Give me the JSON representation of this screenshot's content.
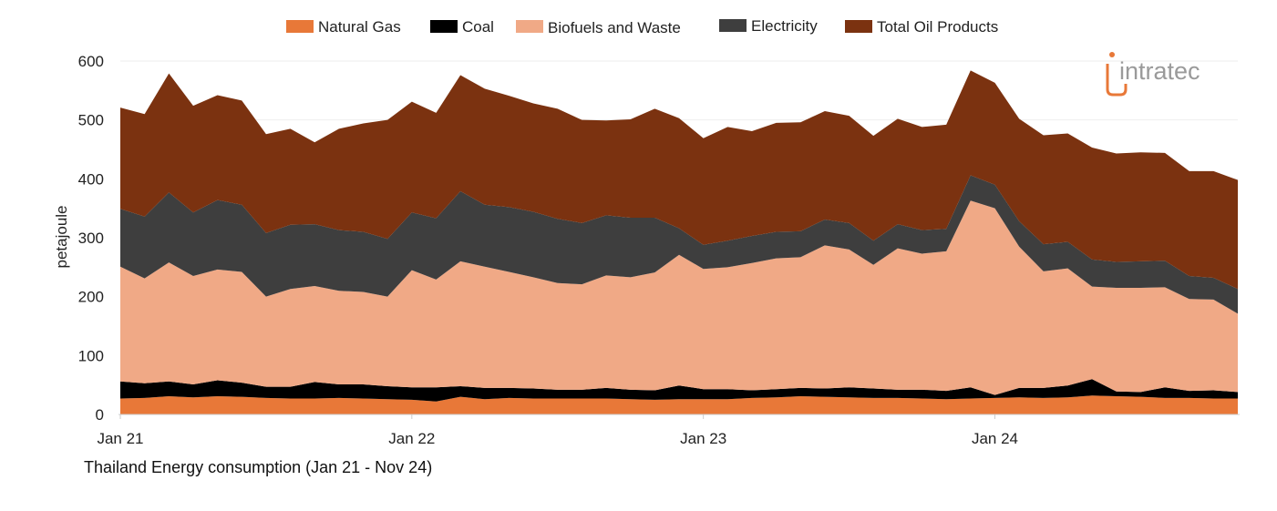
{
  "chart_data": {
    "type": "area",
    "stacked": true,
    "title": "Thailand Energy consumption (Jan 21 - Nov 24)",
    "ylabel": "petajoule",
    "xlabel": "",
    "ylim": [
      0,
      600
    ],
    "yticks": [
      0,
      100,
      200,
      300,
      400,
      500,
      600
    ],
    "xticks": [
      {
        "index": 0,
        "label": "Jan 21"
      },
      {
        "index": 12,
        "label": "Jan 22"
      },
      {
        "index": 24,
        "label": "Jan 23"
      },
      {
        "index": 36,
        "label": "Jan 24"
      }
    ],
    "legend_position": "top",
    "gridlines": true,
    "series": [
      {
        "name": "Natural Gas",
        "color": "#e87838",
        "values": [
          27,
          28,
          31,
          29,
          31,
          30,
          28,
          27,
          27,
          28,
          27,
          26,
          25,
          22,
          30,
          26,
          28,
          27,
          27,
          27,
          27,
          26,
          25,
          26,
          26,
          26,
          28,
          29,
          31,
          30,
          29,
          28,
          28,
          27,
          26,
          27,
          28,
          29,
          28,
          29,
          32,
          31,
          30,
          28,
          28,
          27,
          27
        ]
      },
      {
        "name": "Coal",
        "color": "#000000",
        "values": [
          29,
          25,
          25,
          22,
          27,
          24,
          19,
          20,
          28,
          23,
          24,
          22,
          21,
          24,
          18,
          19,
          17,
          17,
          15,
          15,
          18,
          16,
          16,
          23,
          17,
          17,
          13,
          14,
          14,
          14,
          17,
          16,
          14,
          15,
          14,
          19,
          5,
          16,
          17,
          20,
          28,
          8,
          8,
          18,
          12,
          14,
          11
        ]
      },
      {
        "name": "Biofuels and Waste",
        "color": "#f0a986",
        "values": [
          195,
          178,
          202,
          184,
          188,
          188,
          153,
          166,
          163,
          159,
          157,
          152,
          199,
          183,
          212,
          206,
          197,
          189,
          181,
          179,
          191,
          191,
          200,
          222,
          204,
          207,
          216,
          222,
          222,
          243,
          234,
          210,
          240,
          231,
          237,
          317,
          317,
          240,
          198,
          199,
          157,
          176,
          177,
          170,
          156,
          154,
          133
        ]
      },
      {
        "name": "Electricity",
        "color": "#3e3e3e",
        "values": [
          98,
          105,
          119,
          108,
          118,
          114,
          108,
          109,
          105,
          103,
          102,
          98,
          98,
          104,
          119,
          105,
          110,
          111,
          109,
          104,
          102,
          101,
          93,
          45,
          41,
          45,
          46,
          45,
          44,
          44,
          45,
          41,
          41,
          40,
          38,
          43,
          40,
          43,
          46,
          45,
          46,
          44,
          45,
          45,
          39,
          37,
          42
        ]
      },
      {
        "name": "Total Oil Products",
        "color": "#7b3210",
        "values": [
          172,
          174,
          202,
          181,
          178,
          177,
          168,
          163,
          139,
          172,
          184,
          202,
          188,
          179,
          197,
          197,
          189,
          184,
          187,
          175,
          161,
          167,
          185,
          187,
          181,
          193,
          178,
          185,
          185,
          184,
          182,
          178,
          179,
          175,
          177,
          178,
          173,
          174,
          185,
          184,
          190,
          184,
          185,
          183,
          178,
          181,
          185
        ]
      }
    ]
  },
  "watermark": {
    "text": "intratec"
  }
}
